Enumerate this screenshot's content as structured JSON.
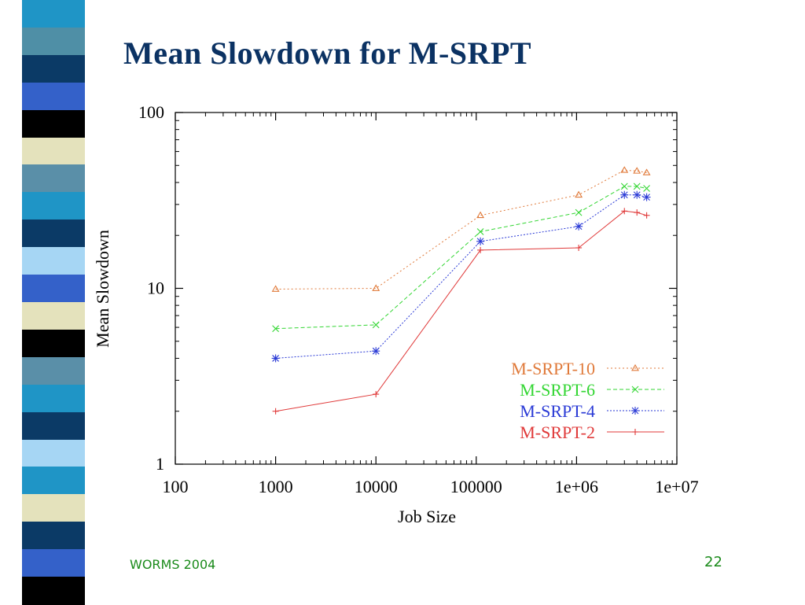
{
  "slide": {
    "title": "Mean Slowdown for M-SRPT",
    "footer_left": "WORMS 2004",
    "page_number": "22"
  },
  "decoration": {
    "strip_colors": [
      "#1f95c6",
      "#4f8fa6",
      "#0b3a66",
      "#3461c9",
      "#000000",
      "#e4e2bc",
      "#5a8fa8",
      "#1f95c6",
      "#0b3a66",
      "#a6d6f4",
      "#3461c9",
      "#e4e2bc",
      "#000000",
      "#5a8fa8",
      "#1f95c6",
      "#0b3a66",
      "#a6d6f4",
      "#1f95c6",
      "#e4e2bc",
      "#0b3a66",
      "#3461c9",
      "#000000"
    ]
  },
  "chart_data": {
    "type": "line",
    "x_scale": "log",
    "y_scale": "log",
    "xlabel": "Job Size",
    "ylabel": "Mean Slowdown",
    "xlim": [
      100,
      10000000
    ],
    "ylim": [
      1,
      100
    ],
    "x_ticks": [
      {
        "value": 100,
        "label": "100"
      },
      {
        "value": 1000,
        "label": "1000"
      },
      {
        "value": 10000,
        "label": "10000"
      },
      {
        "value": 100000,
        "label": "100000"
      },
      {
        "value": 1000000,
        "label": "1e+06"
      },
      {
        "value": 10000000,
        "label": "1e+07"
      }
    ],
    "y_ticks": [
      {
        "value": 1,
        "label": "1"
      },
      {
        "value": 10,
        "label": "10"
      },
      {
        "value": 100,
        "label": "100"
      }
    ],
    "legend_position": "lower-right",
    "grid": false,
    "series": [
      {
        "name": "M-SRPT-10",
        "color": "#e07a3a",
        "marker": "triangle",
        "dash": "2,3",
        "x": [
          1000,
          10000,
          110000,
          1050000,
          3000000,
          4000000,
          5000000
        ],
        "y": [
          9.9,
          10,
          26,
          34,
          47,
          46.5,
          45.5
        ]
      },
      {
        "name": "M-SRPT-6",
        "color": "#33d633",
        "marker": "x",
        "dash": "5,3",
        "x": [
          1000,
          10000,
          110000,
          1050000,
          3000000,
          4000000,
          5000000
        ],
        "y": [
          5.9,
          6.2,
          21,
          27,
          38,
          38,
          37
        ]
      },
      {
        "name": "M-SRPT-4",
        "color": "#2a3ad6",
        "marker": "star",
        "dash": "2,2",
        "x": [
          1000,
          10000,
          110000,
          1050000,
          3000000,
          4000000,
          5000000
        ],
        "y": [
          4,
          4.4,
          18.5,
          22.5,
          34,
          34,
          33
        ]
      },
      {
        "name": "M-SRPT-2",
        "color": "#e03a3a",
        "marker": "plus",
        "dash": "",
        "x": [
          1000,
          10000,
          110000,
          1050000,
          3000000,
          4000000,
          5000000
        ],
        "y": [
          2,
          2.5,
          16.5,
          17,
          27.5,
          27,
          26
        ]
      }
    ]
  }
}
